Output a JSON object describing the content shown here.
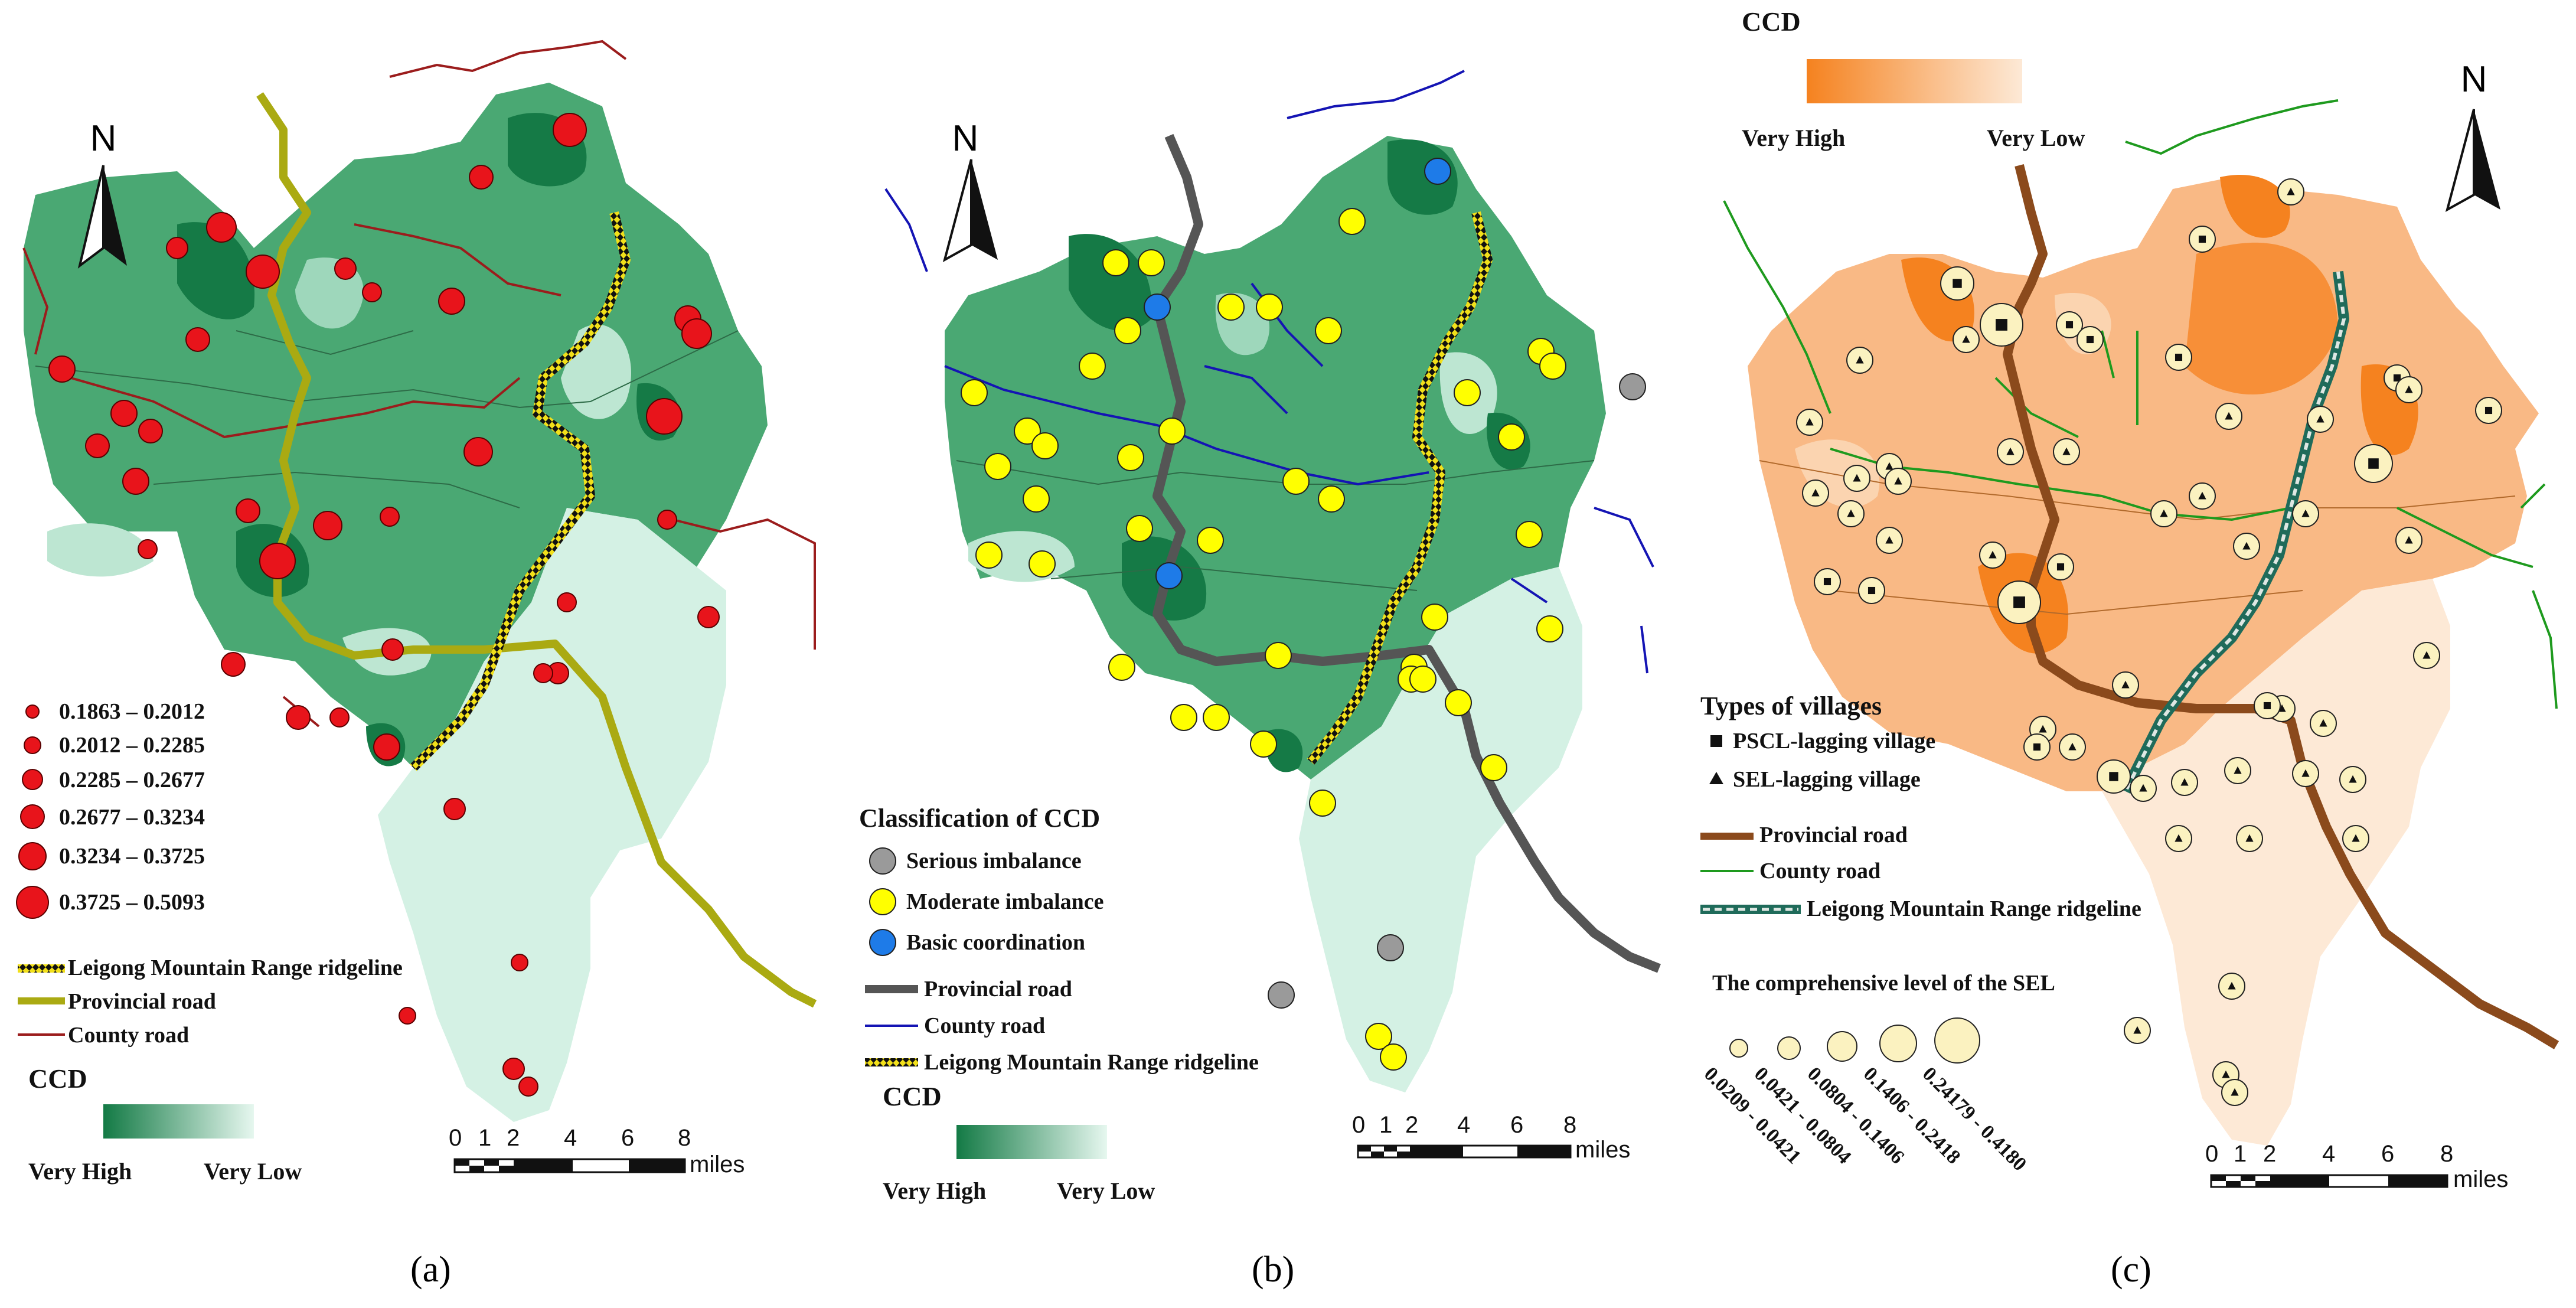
{
  "panels": [
    {
      "id": "a",
      "caption": "(a)",
      "north": "N",
      "dot_legend": [
        "0.1863 – 0.2012",
        "0.2012 – 0.2285",
        "0.2285 – 0.2677",
        "0.2677 – 0.3234",
        "0.3234 – 0.3725",
        "0.3725 – 0.5093"
      ],
      "line_legend": [
        "Leigong Mountain Range ridgeline",
        "Provincial road",
        "County road"
      ],
      "ccd_title": "CCD",
      "ccd_high": "Very High",
      "ccd_low": "Very Low",
      "scale_ticks": [
        "0",
        "1",
        "2",
        "4",
        "6",
        "8"
      ],
      "scale_unit": "miles",
      "colors": {
        "ramp_high": "#137a45",
        "ramp_low": "#e6f7ef",
        "dot": "#e8141b",
        "provincial_road": "#aaaa12",
        "county_road": "#9b1c1c"
      }
    },
    {
      "id": "b",
      "caption": "(b)",
      "north": "N",
      "class_title": "Classification of CCD",
      "classes": [
        "Serious imbalance",
        "Moderate imbalance",
        "Basic coordination"
      ],
      "line_legend": [
        "Provincial road",
        "County road",
        "Leigong Mountain Range ridgeline"
      ],
      "ccd_title": "CCD",
      "ccd_high": "Very High",
      "ccd_low": "Very Low",
      "scale_ticks": [
        "0",
        "1",
        "2",
        "4",
        "6",
        "8"
      ],
      "scale_unit": "miles",
      "colors": {
        "serious": "#9a9a9a",
        "moderate": "#ffff00",
        "basic": "#1e7be8",
        "provincial_road": "#555555",
        "county_road": "#1414b4"
      }
    },
    {
      "id": "c",
      "caption": "(c)",
      "north": "N",
      "ccd_title": "CCD",
      "ccd_high": "Very High",
      "ccd_low": "Very Low",
      "types_title": "Types of  villages",
      "types": [
        "PSCL-lagging village",
        "SEL-lagging village"
      ],
      "line_legend": [
        "Provincial road",
        "County road",
        "Leigong Mountain Range ridgeline"
      ],
      "sel_title": "The comprehensive level of the SEL",
      "sel_classes": [
        "0.0209 - 0.0421",
        "0.0421 - 0.0804",
        "0.0804 - 0.1406",
        "0.1406 - 0.2418",
        "0.24179 - 0.4180"
      ],
      "scale_ticks": [
        "0",
        "1",
        "2",
        "4",
        "6",
        "8"
      ],
      "scale_unit": "miles",
      "colors": {
        "ramp_high": "#f5821f",
        "ramp_low": "#fde9d6",
        "village_fill": "#fbf2c0",
        "provincial_road": "#8b4a1c",
        "county_road": "#1e9a1e",
        "ridgeline": "#1f6b5a"
      }
    }
  ]
}
